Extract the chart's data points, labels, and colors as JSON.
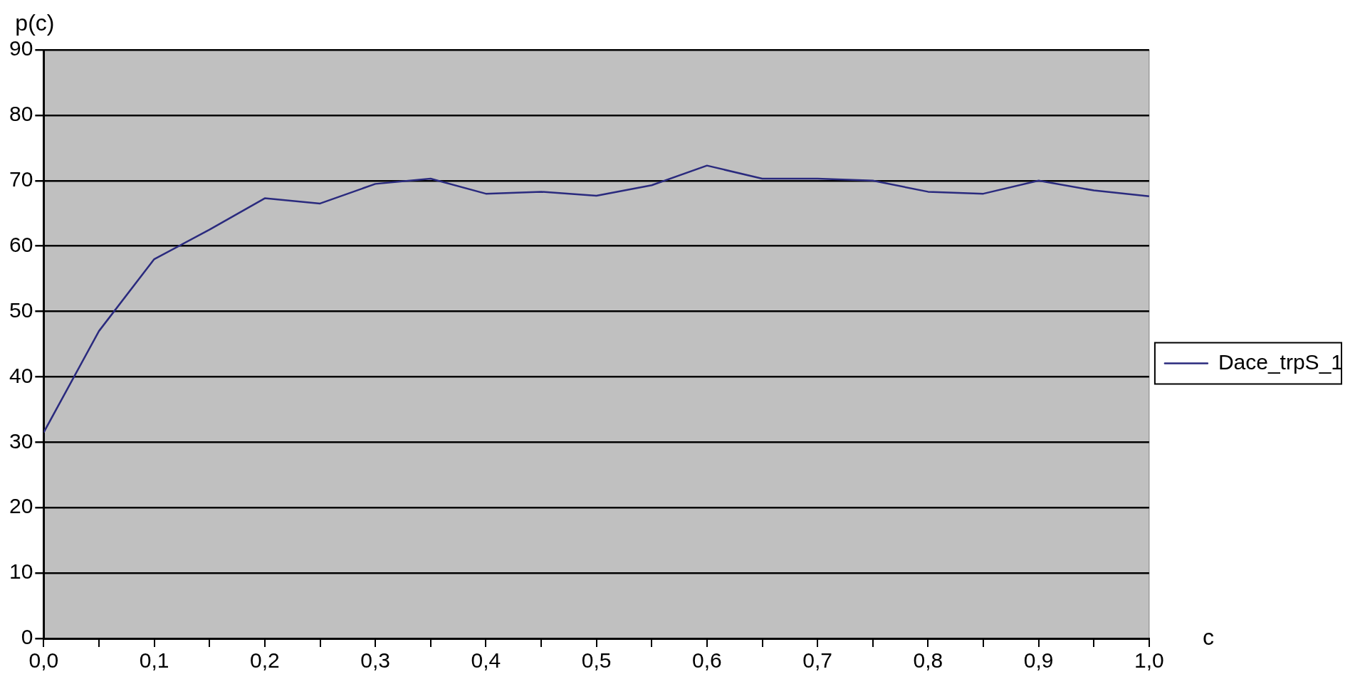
{
  "chart_data": {
    "type": "line",
    "xlabel": "c",
    "ylabel": "p(c)",
    "x": [
      0,
      0.05,
      0.1,
      0.15,
      0.2,
      0.25,
      0.3,
      0.35,
      0.4,
      0.45,
      0.5,
      0.55,
      0.6,
      0.65,
      0.7,
      0.75,
      0.8,
      0.85,
      0.9,
      0.95,
      1.0
    ],
    "series": [
      {
        "name": "Dace_trpS_1",
        "color": "#2a2a7e",
        "values": [
          31.5,
          47,
          58,
          62.5,
          67.3,
          66.5,
          69.5,
          70.3,
          68,
          68.3,
          67.7,
          69.3,
          72.3,
          70.3,
          70.3,
          70,
          68.3,
          68,
          70,
          68.5,
          67.6
        ]
      }
    ],
    "xlim": [
      0,
      1
    ],
    "xticks": [
      {
        "value": 0,
        "label": "0,0"
      },
      {
        "value": 0.05,
        "label": null
      },
      {
        "value": 0.1,
        "label": "0,1"
      },
      {
        "value": 0.15,
        "label": null
      },
      {
        "value": 0.2,
        "label": "0,2"
      },
      {
        "value": 0.25,
        "label": null
      },
      {
        "value": 0.3,
        "label": "0,3"
      },
      {
        "value": 0.35,
        "label": null
      },
      {
        "value": 0.4,
        "label": "0,4"
      },
      {
        "value": 0.45,
        "label": null
      },
      {
        "value": 0.5,
        "label": "0,5"
      },
      {
        "value": 0.55,
        "label": null
      },
      {
        "value": 0.6,
        "label": "0,6"
      },
      {
        "value": 0.65,
        "label": null
      },
      {
        "value": 0.7,
        "label": "0,7"
      },
      {
        "value": 0.75,
        "label": null
      },
      {
        "value": 0.8,
        "label": "0,8"
      },
      {
        "value": 0.85,
        "label": null
      },
      {
        "value": 0.9,
        "label": "0,9"
      },
      {
        "value": 0.95,
        "label": null
      },
      {
        "value": 1.0,
        "label": "1,0"
      }
    ],
    "ylim": [
      0,
      90
    ],
    "yticks": [
      0,
      10,
      20,
      30,
      40,
      50,
      60,
      70,
      80,
      90
    ],
    "grid": "y",
    "legend": "right",
    "marker": "none",
    "line_style": "solid"
  }
}
